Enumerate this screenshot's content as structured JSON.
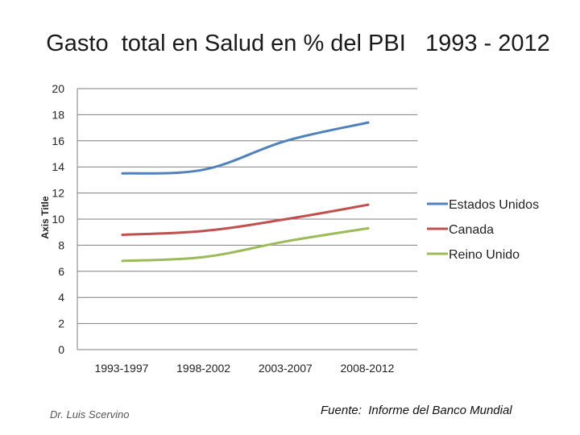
{
  "chart_data": {
    "type": "line",
    "title": "Gasto  total en Salud en % del PBI   1993 - 2012",
    "ylabel": "Axis Title",
    "xlabel": "",
    "ylim": [
      0,
      20
    ],
    "yticks": [
      0,
      2,
      4,
      6,
      8,
      10,
      12,
      14,
      16,
      18,
      20
    ],
    "grid": true,
    "legend_position": "right",
    "categories": [
      "1993-1997",
      "1998-2002",
      "2003-2007",
      "2008-2012"
    ],
    "series": [
      {
        "name": "Estados Unidos",
        "color": "#4f81bd",
        "values": [
          13.5,
          13.8,
          16.0,
          17.4
        ]
      },
      {
        "name": "Canada",
        "color": "#c0504d",
        "values": [
          8.8,
          9.1,
          10.0,
          11.1
        ]
      },
      {
        "name": "Reino Unido",
        "color": "#9bbb59",
        "values": [
          6.8,
          7.1,
          8.3,
          9.3
        ]
      }
    ]
  },
  "footer": {
    "author": "Dr. Luis Scervino",
    "source": "Fuente:  Informe del Banco Mundial"
  }
}
